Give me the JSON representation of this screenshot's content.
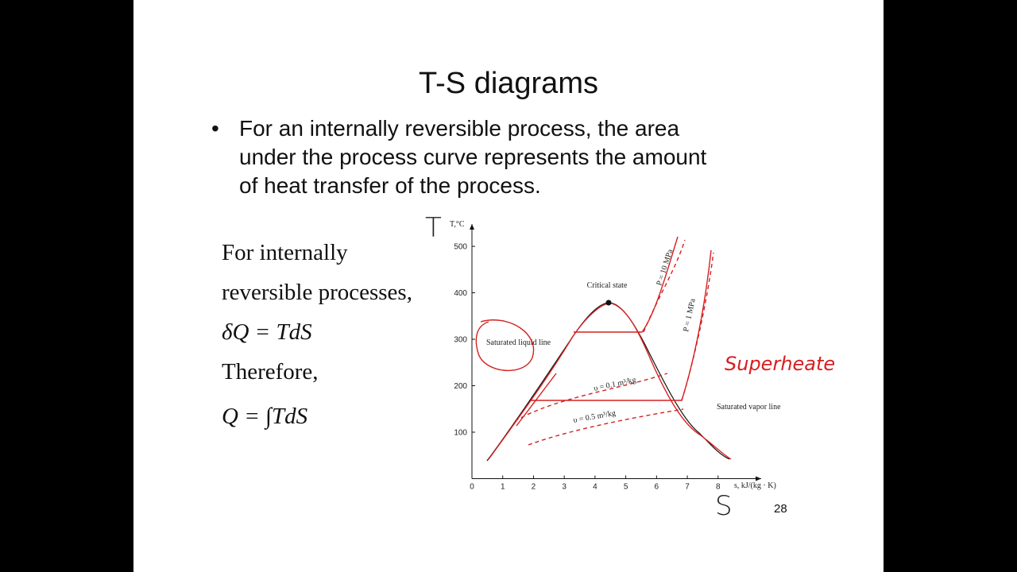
{
  "slide": {
    "title": "T-S diagrams",
    "bullet": [
      "For an internally reversible process, the area",
      "under the process curve represents the amount",
      "of heat transfer of the process."
    ],
    "left_text": [
      "For internally",
      "reversible processes,",
      "δQ = TdS",
      "Therefore,",
      "Q = ∫TdS"
    ],
    "page_number": "28",
    "handwritten": {
      "t_label": "T",
      "s_label": "S",
      "note": "Superheate"
    },
    "figure": {
      "y_label": "T,°C",
      "x_label": "s, kJ/(kg · K)",
      "xlim": [
        0,
        9.4
      ],
      "ylim": [
        0,
        548
      ],
      "xticks": [
        0,
        1,
        2,
        3,
        4,
        5,
        6,
        7,
        8
      ],
      "yticks": [
        100,
        200,
        300,
        400,
        500
      ],
      "annotations": {
        "critical": "Critical state",
        "liquid": "Saturated liquid line",
        "vapor": "Saturated vapor line",
        "p10": "P = 10 MPa",
        "p1": "P = 1 MPa",
        "v01": "υ = 0.1 m³/kg",
        "v05": "υ = 0.5 m³/kg"
      }
    }
  }
}
